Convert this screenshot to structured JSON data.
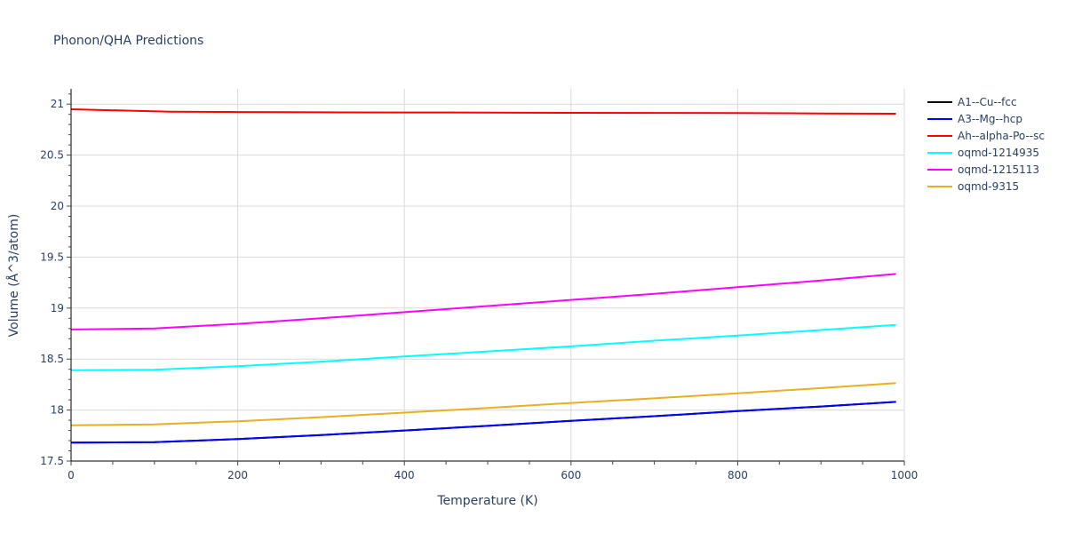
{
  "chart_data": {
    "type": "line",
    "title": "Phonon/QHA Predictions",
    "xlabel": "Temperature (K)",
    "ylabel": "Volume (Å^3/atom)",
    "xlim": [
      0,
      1000
    ],
    "ylim": [
      17.5,
      21.15
    ],
    "xticks": [
      0,
      200,
      400,
      600,
      800,
      1000
    ],
    "xtick_labels": [
      "0",
      "200",
      "400",
      "600",
      "800",
      "1000"
    ],
    "yticks": [
      17.5,
      18,
      18.5,
      19,
      19.5,
      20,
      20.5,
      21
    ],
    "ytick_labels": [
      "17.5",
      "18",
      "18.5",
      "19",
      "19.5",
      "20",
      "20.5",
      "21"
    ],
    "grid": true,
    "legend_position": "right",
    "series": [
      {
        "name": "A1--Cu--fcc",
        "color": "#000000",
        "x": [
          0,
          100,
          200,
          300,
          400,
          500,
          600,
          700,
          800,
          900,
          990
        ],
        "y": [
          17.68,
          17.685,
          17.715,
          17.755,
          17.8,
          17.845,
          17.895,
          17.94,
          17.99,
          18.035,
          18.08
        ]
      },
      {
        "name": "A3--Mg--hcp",
        "color": "#0000ff",
        "x": [
          0,
          100,
          200,
          300,
          400,
          500,
          600,
          700,
          800,
          900,
          990
        ],
        "y": [
          17.68,
          17.685,
          17.715,
          17.755,
          17.8,
          17.845,
          17.895,
          17.94,
          17.99,
          18.035,
          18.08
        ]
      },
      {
        "name": "Ah--alpha-Po--sc",
        "color": "#ff0000",
        "x": [
          0,
          120,
          200,
          300,
          400,
          500,
          600,
          700,
          800,
          900,
          990
        ],
        "y": [
          20.95,
          20.925,
          20.923,
          20.92,
          20.918,
          20.917,
          20.915,
          20.914,
          20.912,
          20.909,
          20.906
        ]
      },
      {
        "name": "oqmd-1214935",
        "color": "#00ffff",
        "x": [
          0,
          100,
          200,
          300,
          400,
          500,
          600,
          700,
          800,
          900,
          990
        ],
        "y": [
          18.39,
          18.395,
          18.43,
          18.475,
          18.525,
          18.575,
          18.625,
          18.68,
          18.73,
          18.785,
          18.835
        ]
      },
      {
        "name": "oqmd-1215113",
        "color": "#ff00ff",
        "x": [
          0,
          100,
          200,
          300,
          400,
          500,
          600,
          700,
          800,
          900,
          990
        ],
        "y": [
          18.79,
          18.8,
          18.845,
          18.9,
          18.96,
          19.02,
          19.08,
          19.14,
          19.205,
          19.27,
          19.335
        ]
      },
      {
        "name": "oqmd-9315",
        "color": "#e6b020",
        "x": [
          0,
          100,
          200,
          300,
          400,
          500,
          600,
          700,
          800,
          900,
          990
        ],
        "y": [
          17.85,
          17.86,
          17.89,
          17.93,
          17.975,
          18.02,
          18.07,
          18.115,
          18.165,
          18.215,
          18.265
        ]
      }
    ]
  }
}
